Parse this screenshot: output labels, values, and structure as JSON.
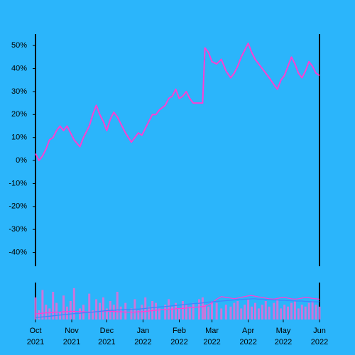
{
  "chart_data": [
    {
      "type": "line",
      "xlim": [
        "2021-10-01",
        "2022-06-01"
      ],
      "ylim": [
        -46,
        55
      ],
      "yticks": [
        {
          "value": -40,
          "label": "-40%"
        },
        {
          "value": -30,
          "label": "-30%"
        },
        {
          "value": -20,
          "label": "-20%"
        },
        {
          "value": -10,
          "label": "-10%"
        },
        {
          "value": 0,
          "label": "0%"
        },
        {
          "value": 10,
          "label": "10%"
        },
        {
          "value": 20,
          "label": "20%"
        },
        {
          "value": 30,
          "label": "30%"
        },
        {
          "value": 40,
          "label": "40%"
        },
        {
          "value": 50,
          "label": "50%"
        }
      ],
      "x": [
        "2021-10-01",
        "2021-10-04",
        "2021-10-07",
        "2021-10-10",
        "2021-10-13",
        "2021-10-16",
        "2021-10-19",
        "2021-10-22",
        "2021-10-25",
        "2021-10-28",
        "2021-10-31",
        "2021-11-03",
        "2021-11-08",
        "2021-11-11",
        "2021-11-16",
        "2021-11-19",
        "2021-11-22",
        "2021-11-25",
        "2021-11-28",
        "2021-12-01",
        "2021-12-04",
        "2021-12-07",
        "2021-12-10",
        "2021-12-13",
        "2021-12-17",
        "2021-12-22",
        "2021-12-25",
        "2021-12-28",
        "2021-12-31",
        "2022-01-03",
        "2022-01-06",
        "2022-01-09",
        "2022-01-12",
        "2022-01-15",
        "2022-01-20",
        "2022-01-23",
        "2022-01-26",
        "2022-01-29",
        "2022-02-01",
        "2022-02-04",
        "2022-02-07",
        "2022-02-10",
        "2022-02-13",
        "2022-02-18",
        "2022-02-21",
        "2022-02-23",
        "2022-02-26",
        "2022-03-01",
        "2022-03-05",
        "2022-03-09",
        "2022-03-13",
        "2022-03-17",
        "2022-03-20",
        "2022-03-23",
        "2022-03-26",
        "2022-03-29",
        "2022-04-01",
        "2022-04-04",
        "2022-04-07",
        "2022-04-10",
        "2022-04-13",
        "2022-04-16",
        "2022-04-19",
        "2022-04-23",
        "2022-04-26",
        "2022-04-29",
        "2022-05-02",
        "2022-05-05",
        "2022-05-08",
        "2022-05-11",
        "2022-05-14",
        "2022-05-17",
        "2022-05-20",
        "2022-05-23",
        "2022-05-26",
        "2022-05-29",
        "2022-06-01"
      ],
      "series": [
        {
          "color": "#ff3fd2",
          "values": [
            3,
            0,
            2,
            5,
            9,
            10,
            13,
            15,
            13,
            15,
            12,
            9,
            6,
            10,
            15,
            20,
            24,
            20,
            17,
            13,
            18,
            21,
            19,
            16,
            12,
            8,
            10,
            12,
            11,
            14,
            17,
            20,
            20,
            22,
            24,
            27,
            28,
            31,
            27,
            28,
            30,
            27,
            25,
            25,
            25,
            49,
            47,
            43,
            42,
            44,
            39,
            36,
            38,
            41,
            45,
            48,
            51,
            47,
            44,
            42,
            40,
            38,
            36,
            33,
            31,
            35,
            37,
            41,
            45,
            42,
            38,
            36,
            39,
            43,
            41,
            38,
            37
          ]
        }
      ]
    },
    {
      "type": "bar",
      "xlim": [
        "2021-10-01",
        "2022-06-01"
      ],
      "ylim": [
        0,
        100
      ],
      "xticks": [
        {
          "value": "2021-10-01",
          "label": "Oct 2021"
        },
        {
          "value": "2021-11-01",
          "label": "Nov 2021"
        },
        {
          "value": "2021-12-01",
          "label": "Dec 2021"
        },
        {
          "value": "2022-01-01",
          "label": "Jan 2022"
        },
        {
          "value": "2022-02-01",
          "label": "Feb 2022"
        },
        {
          "value": "2022-03-01",
          "label": "Mar 2022"
        },
        {
          "value": "2022-04-01",
          "label": "Apr 2022"
        },
        {
          "value": "2022-05-01",
          "label": "May 2022"
        },
        {
          "value": "2022-06-01",
          "label": "Jun 2022"
        }
      ],
      "x": [
        "2021-10-01",
        "2021-10-04",
        "2021-10-07",
        "2021-10-10",
        "2021-10-13",
        "2021-10-16",
        "2021-10-19",
        "2021-10-22",
        "2021-10-25",
        "2021-10-28",
        "2021-10-31",
        "2021-11-03",
        "2021-11-08",
        "2021-11-11",
        "2021-11-16",
        "2021-11-19",
        "2021-11-22",
        "2021-11-25",
        "2021-11-28",
        "2021-12-01",
        "2021-12-04",
        "2021-12-07",
        "2021-12-10",
        "2021-12-13",
        "2021-12-17",
        "2021-12-22",
        "2021-12-25",
        "2021-12-28",
        "2021-12-31",
        "2022-01-03",
        "2022-01-06",
        "2022-01-09",
        "2022-01-12",
        "2022-01-15",
        "2022-01-20",
        "2022-01-23",
        "2022-01-26",
        "2022-01-29",
        "2022-02-01",
        "2022-02-04",
        "2022-02-07",
        "2022-02-10",
        "2022-02-13",
        "2022-02-18",
        "2022-02-21",
        "2022-02-23",
        "2022-02-26",
        "2022-03-01",
        "2022-03-05",
        "2022-03-09",
        "2022-03-13",
        "2022-03-17",
        "2022-03-20",
        "2022-03-23",
        "2022-03-26",
        "2022-03-29",
        "2022-04-01",
        "2022-04-04",
        "2022-04-07",
        "2022-04-10",
        "2022-04-13",
        "2022-04-16",
        "2022-04-19",
        "2022-04-23",
        "2022-04-26",
        "2022-04-29",
        "2022-05-02",
        "2022-05-05",
        "2022-05-08",
        "2022-05-11",
        "2022-05-14",
        "2022-05-17",
        "2022-05-20",
        "2022-05-23",
        "2022-05-26",
        "2022-05-29",
        "2022-06-01"
      ],
      "series": [
        {
          "type": "bar",
          "color": "#e86bd6",
          "values": [
            60,
            25,
            80,
            40,
            30,
            75,
            45,
            20,
            65,
            35,
            50,
            85,
            30,
            40,
            70,
            25,
            55,
            45,
            60,
            30,
            50,
            40,
            75,
            35,
            45,
            30,
            55,
            25,
            40,
            60,
            35,
            50,
            45,
            30,
            40,
            55,
            35,
            45,
            30,
            50,
            40,
            35,
            45,
            55,
            60,
            40,
            35,
            50,
            45,
            30,
            40,
            35,
            45,
            50,
            30,
            40,
            55,
            35,
            45,
            30,
            40,
            50,
            35,
            45,
            55,
            30,
            40,
            35,
            45,
            50,
            30,
            40,
            35,
            45,
            50,
            40,
            35
          ]
        },
        {
          "type": "line",
          "color": "#ff3fd2",
          "values": [
            15,
            16,
            17,
            18,
            18,
            19,
            20,
            20,
            21,
            21,
            22,
            22,
            21,
            21,
            20,
            20,
            21,
            22,
            22,
            23,
            22,
            22,
            21,
            21,
            20,
            20,
            20,
            21,
            21,
            22,
            23,
            24,
            25,
            26,
            27,
            28,
            28,
            29,
            30,
            30,
            31,
            32,
            33,
            34,
            35,
            36,
            40,
            45,
            55,
            62,
            60,
            58,
            56,
            58,
            60,
            62,
            64,
            65,
            63,
            61,
            60,
            58,
            56,
            55,
            57,
            59,
            60,
            58,
            56,
            55,
            56,
            58,
            60,
            59,
            57,
            56,
            55
          ]
        },
        {
          "type": "line",
          "color": "#3a86ff",
          "values": [
            5,
            6,
            7,
            8,
            9,
            10,
            11,
            12,
            13,
            14,
            15,
            16,
            17,
            18,
            19,
            20,
            21,
            22,
            23,
            24,
            25,
            25,
            26,
            26,
            27,
            27,
            28,
            28,
            29,
            30,
            31,
            32,
            33,
            34,
            35,
            36,
            37,
            38,
            39,
            40,
            41,
            42,
            43,
            44,
            45,
            46,
            47,
            48,
            49,
            50,
            51,
            52,
            53,
            54,
            54,
            55,
            55,
            56,
            56,
            55,
            55,
            54,
            54,
            53,
            53,
            52,
            52,
            51,
            51,
            50,
            50,
            50,
            49,
            49,
            48,
            48,
            48
          ]
        }
      ]
    }
  ]
}
